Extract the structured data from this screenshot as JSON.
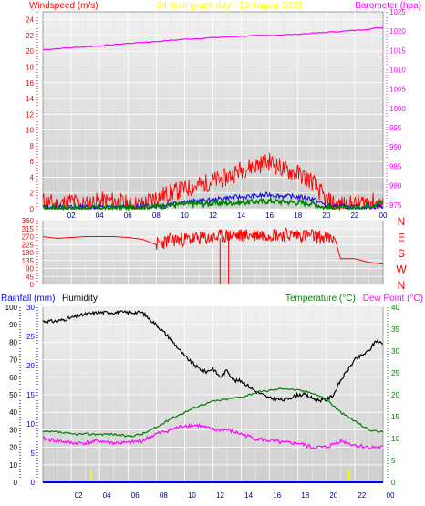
{
  "page": {
    "title": "24 hour graph day - 13 August 2025",
    "bg_color": "#ffffff"
  },
  "chart_data": [
    {
      "type": "line",
      "panel": "wind-barometer",
      "title": "24 hour graph day - 13 August 2025",
      "ylabel_left": "Windspeed (m/s)",
      "ylabel_right": "Barometer (hpa)",
      "ylim_left": [
        0,
        25
      ],
      "ylim_right": [
        974,
        1025
      ],
      "yticks_left": [
        "0",
        "2",
        "4",
        "6",
        "8",
        "10",
        "12",
        "14",
        "16",
        "18",
        "20",
        "22",
        "24"
      ],
      "yticks_right": [
        "975",
        "980",
        "985",
        "990",
        "995",
        "1000",
        "1005",
        "1010",
        "1015",
        "1020",
        "1025"
      ],
      "xlim": [
        0,
        24
      ],
      "xticks": [
        "02",
        "04",
        "06",
        "08",
        "10",
        "12",
        "14",
        "16",
        "18",
        "20",
        "22",
        "00"
      ],
      "grid": true,
      "colors": {
        "gust": "#ff0000",
        "average": "#0000ff",
        "wind_low": "#008000",
        "barometer": "#ff00ff",
        "left_axis": "#ff0000",
        "right_axis": "#ff00ff",
        "title": "#ffff00"
      },
      "series": [
        {
          "name": "Barometer",
          "axis": "right",
          "x": [
            0,
            2,
            4,
            6,
            8,
            10,
            12,
            14,
            16,
            18,
            20,
            22,
            24
          ],
          "values": [
            1015.2,
            1015.7,
            1016.2,
            1016.8,
            1017.3,
            1017.9,
            1018.3,
            1018.7,
            1018.9,
            1019.2,
            1019.7,
            1020.2,
            1020.9
          ]
        },
        {
          "axis": "left",
          "x": [
            0,
            1,
            2,
            3,
            4,
            5,
            6,
            7,
            8,
            9,
            10,
            11,
            12,
            13,
            14,
            15,
            16,
            17,
            18,
            19,
            20,
            21,
            22,
            23,
            24
          ],
          "values": [
            1,
            0.5,
            1,
            0.5,
            1,
            1,
            0.5,
            0.5,
            1.5,
            2,
            2.5,
            3,
            3.5,
            4,
            5,
            5.5,
            6,
            5,
            4.5,
            3.5,
            1,
            0.5,
            0.5,
            1,
            0.5
          ]
        },
        {
          "axis": "left",
          "x": [
            0,
            2,
            4,
            6,
            8,
            10,
            12,
            13,
            14,
            15,
            16,
            17,
            18,
            19,
            20,
            22,
            24
          ],
          "values": [
            0.2,
            0.2,
            0.2,
            0.2,
            0.4,
            0.9,
            1.1,
            1.4,
            1.5,
            1.6,
            1.8,
            1.6,
            1.5,
            1.3,
            0.4,
            0.2,
            0.3
          ]
        },
        {
          "axis": "left",
          "x": [
            0,
            2,
            4,
            6,
            8,
            10,
            12,
            14,
            16,
            18,
            19,
            20,
            22,
            24
          ],
          "values": [
            0.1,
            0.1,
            0.1,
            0.1,
            0.3,
            0.6,
            0.7,
            0.8,
            1.0,
            0.8,
            0.7,
            0.1,
            0.1,
            0.8
          ]
        }
      ]
    },
    {
      "type": "line",
      "panel": "wind-direction",
      "ylim": [
        0,
        360
      ],
      "yticks": [
        "0",
        "45",
        "90",
        "135",
        "180",
        "225",
        "270",
        "315",
        "360"
      ],
      "yticks_right": [
        "N",
        "W",
        "S",
        "E",
        "N"
      ],
      "xlim": [
        0,
        24
      ],
      "grid": true,
      "colors": {
        "direction": "#ff0000",
        "axis": "#ff0000"
      },
      "series": [
        {
          "x": [
            0,
            1,
            2,
            3,
            4,
            5,
            6,
            7,
            8,
            9,
            10,
            11,
            12,
            12.5,
            13,
            14,
            15,
            16,
            17,
            18,
            19,
            20,
            20.6,
            21,
            22,
            23,
            24
          ],
          "values": [
            270,
            260,
            265,
            270,
            270,
            270,
            265,
            255,
            225,
            250,
            255,
            260,
            260,
            270,
            275,
            275,
            280,
            285,
            280,
            280,
            275,
            260,
            260,
            145,
            145,
            125,
            115
          ]
        }
      ]
    },
    {
      "type": "line",
      "panel": "temperature-humidity",
      "ylabel_rainfall": "Rainfall (mm)",
      "ylabel_humidity": "Humidity",
      "ylabel_temperature": "Temperature (°C)",
      "ylabel_dewpoint": "Dew Point (°C)",
      "ylim_humidity": [
        0,
        100
      ],
      "ylim_rainfall": [
        0,
        30
      ],
      "ylim_temperature": [
        0,
        40
      ],
      "yticks_humidity": [
        "0",
        "10",
        "20",
        "30",
        "40",
        "50",
        "60",
        "70",
        "80",
        "90",
        "100"
      ],
      "yticks_rainfall": [
        "0",
        "5",
        "10",
        "15",
        "20",
        "25",
        "30"
      ],
      "yticks_temperature": [
        "0",
        "5",
        "10",
        "15",
        "20",
        "25",
        "30",
        "35",
        "40"
      ],
      "xlim": [
        0,
        24
      ],
      "xticks": [
        "02",
        "04",
        "06",
        "08",
        "10",
        "12",
        "14",
        "16",
        "18",
        "20",
        "22",
        "00"
      ],
      "grid": true,
      "colors": {
        "humidity": "#000000",
        "temperature": "#008000",
        "dewpoint": "#ff00ff",
        "rainfall": "#0000ff",
        "rainfall_axis": "#0000ff",
        "temperature_axis": "#008000",
        "dewpoint_label": "#ff00ff",
        "marker": "#ffff00"
      },
      "series": [
        {
          "name": "Humidity",
          "axis": "humidity",
          "x": [
            0,
            1,
            2,
            3,
            4,
            5,
            6,
            7,
            8,
            9,
            10,
            11,
            11.5,
            12,
            12.5,
            13,
            13.5,
            14,
            15,
            16,
            17,
            18,
            18.5,
            19,
            19.5,
            20,
            20.5,
            21,
            22,
            23,
            23.5,
            24
          ],
          "values": [
            92,
            92,
            94,
            96,
            97,
            97,
            97,
            97,
            90,
            82,
            72,
            65,
            63,
            65,
            60,
            64,
            58,
            58,
            52,
            48,
            47,
            50,
            50,
            48,
            47,
            47,
            50,
            58,
            70,
            75,
            81,
            79
          ]
        },
        {
          "name": "Temperature (°C)",
          "axis": "temperature",
          "x": [
            0,
            1,
            2,
            3,
            4,
            5,
            6,
            7,
            8,
            9,
            10,
            11,
            12,
            13,
            14,
            15,
            16,
            17,
            18,
            19,
            20,
            21,
            22,
            23,
            24
          ],
          "values": [
            11.5,
            11.5,
            11,
            11,
            11,
            11,
            10.5,
            11,
            12.5,
            14.5,
            16,
            17.5,
            18.5,
            19,
            19.5,
            20.5,
            21,
            21.5,
            21,
            20.5,
            19,
            16,
            14,
            12,
            11.5
          ]
        },
        {
          "name": "Dew Point (°C)",
          "axis": "temperature",
          "x": [
            0,
            1,
            2,
            3,
            4,
            5,
            6,
            7,
            8,
            9,
            10,
            11,
            12,
            13,
            14,
            15,
            16,
            17,
            18,
            19,
            20,
            21,
            22,
            23,
            24
          ],
          "values": [
            10,
            9.5,
            9,
            9,
            9.5,
            9,
            9,
            9.5,
            11,
            12,
            13,
            13,
            12,
            12,
            11,
            10,
            9.5,
            9,
            9,
            8,
            8,
            9.5,
            8.5,
            8,
            8
          ]
        },
        {
          "name": "Rainfall (mm)",
          "axis": "rainfall",
          "x": [
            0,
            24
          ],
          "values": [
            0,
            0
          ]
        }
      ],
      "markers_x": [
        3.4,
        21.6
      ]
    }
  ]
}
